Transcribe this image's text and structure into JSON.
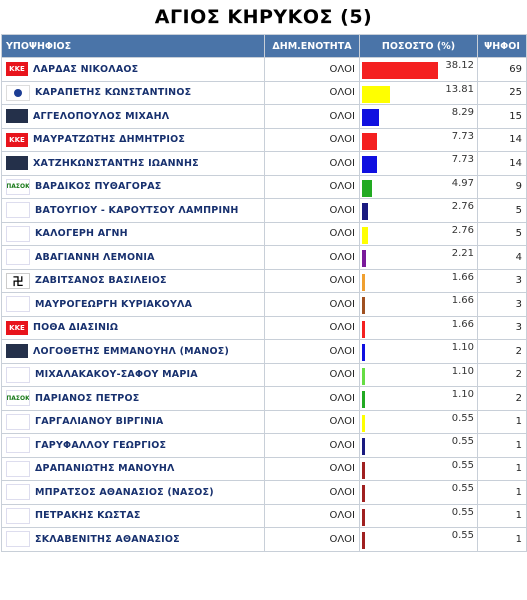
{
  "title": "ΑΓΙΟΣ ΚΗΡΥΚΟΣ (5)",
  "headers": {
    "candidate": "ΥΠΟΨΗΦΙΟΣ",
    "unit": "ΔΗΜ.ΕΝΟΤΗΤΑ",
    "percent": "ΠΟΣΟΣΤΟ (%)",
    "votes": "ΨΗΦΟΙ"
  },
  "colors": {
    "header_bg": "#4a74a8",
    "red": "#f02020",
    "yellow": "#ffff00",
    "blue": "#1010e0",
    "green": "#22aa22",
    "navy": "#1a1a80",
    "purple": "#7a1a9a",
    "orange": "#f0a030",
    "brown": "#a05020",
    "lightgreen": "#66dd44",
    "darkred": "#a02020"
  },
  "max_percent": 38.12,
  "rows": [
    {
      "logo": "kke",
      "logo_text": "KKE",
      "name": "ΛΑΡΔΑΣ ΝΙΚΟΛΑΟΣ",
      "unit": "ΟΛΟΙ",
      "percent": "38.12",
      "votes": "69",
      "bar_color": "#f42020"
    },
    {
      "logo": "nd",
      "logo_text": "",
      "name": "ΚΑΡΑΠΕΤΗΣ ΚΩΝΣΤΑΝΤΙΝΟΣ",
      "unit": "ΟΛΟΙ",
      "percent": "13.81",
      "votes": "25",
      "bar_color": "#ffff00"
    },
    {
      "logo": "syriza",
      "logo_text": "",
      "name": "ΑΓΓΕΛΟΠΟΥΛΟΣ ΜΙΧΑΗΛ",
      "unit": "ΟΛΟΙ",
      "percent": "8.29",
      "votes": "15",
      "bar_color": "#1010e0"
    },
    {
      "logo": "kke",
      "logo_text": "KKE",
      "name": "ΜΑΥΡΑΤΖΩΤΗΣ ΔΗΜΗΤΡΙΟΣ",
      "unit": "ΟΛΟΙ",
      "percent": "7.73",
      "votes": "14",
      "bar_color": "#f42020"
    },
    {
      "logo": "syriza",
      "logo_text": "",
      "name": "ΧΑΤΖΗΚΩΝΣΤΑΝΤΗΣ ΙΩΑΝΝΗΣ",
      "unit": "ΟΛΟΙ",
      "percent": "7.73",
      "votes": "14",
      "bar_color": "#1010e0"
    },
    {
      "logo": "pasok",
      "logo_text": "ΠΑΣΟΚ",
      "name": "ΒΑΡΔΙΚΟΣ ΠΥΘΑΓΟΡΑΣ",
      "unit": "ΟΛΟΙ",
      "percent": "4.97",
      "votes": "9",
      "bar_color": "#22aa22"
    },
    {
      "logo": "anel",
      "logo_text": "",
      "name": "ΒΑΤΟΥΓΙΟΥ - ΚΑΡΟΥΤΣΟΥ ΛΑΜΠΡΙΝΗ",
      "unit": "ΟΛΟΙ",
      "percent": "2.76",
      "votes": "5",
      "bar_color": "#1a1a80"
    },
    {
      "logo": "anel",
      "logo_text": "",
      "name": "ΚΑΛΟΓΕΡΗ ΑΓΝΗ",
      "unit": "ΟΛΟΙ",
      "percent": "2.76",
      "votes": "5",
      "bar_color": "#ffff00"
    },
    {
      "logo": "laos",
      "logo_text": "",
      "name": "ΑΒΑΓΙΑΝΝΗ ΛΕΜΟΝΙΑ",
      "unit": "ΟΛΟΙ",
      "percent": "2.21",
      "votes": "4",
      "bar_color": "#7a1a9a"
    },
    {
      "logo": "xa",
      "logo_text": "卍",
      "name": "ΖΑΒΙΤΣΑΝΟΣ ΒΑΣΙΛΕΙΟΣ",
      "unit": "ΟΛΟΙ",
      "percent": "1.66",
      "votes": "3",
      "bar_color": "#f0a030"
    },
    {
      "logo": "dimar",
      "logo_text": "",
      "name": "ΜΑΥΡΟΓΕΩΡΓΗ ΚΥΡΙΑΚΟΥΛΑ",
      "unit": "ΟΛΟΙ",
      "percent": "1.66",
      "votes": "3",
      "bar_color": "#a05020"
    },
    {
      "logo": "kke",
      "logo_text": "KKE",
      "name": "ΠΟΘΑ ΔΙΑΣΙΝΙΩ",
      "unit": "ΟΛΟΙ",
      "percent": "1.66",
      "votes": "3",
      "bar_color": "#f42020"
    },
    {
      "logo": "syriza",
      "logo_text": "",
      "name": "ΛΟΓΟΘΕΤΗΣ ΕΜΜΑΝΟΥΗΛ (ΜΑΝΟΣ)",
      "unit": "ΟΛΟΙ",
      "percent": "1.10",
      "votes": "2",
      "bar_color": "#1010e0"
    },
    {
      "logo": "potami",
      "logo_text": "",
      "name": "ΜΙΧΑΛΑΚΑΚΟΥ-ΣΑΦΟΥ ΜΑΡΙΑ",
      "unit": "ΟΛΟΙ",
      "percent": "1.10",
      "votes": "2",
      "bar_color": "#66dd44"
    },
    {
      "logo": "pasok",
      "logo_text": "ΠΑΣΟΚ",
      "name": "ΠΑΡΙΑΝΟΣ ΠΕΤΡΟΣ",
      "unit": "ΟΛΟΙ",
      "percent": "1.10",
      "votes": "2",
      "bar_color": "#22aa22"
    },
    {
      "logo": "potami",
      "logo_text": "",
      "name": "ΓΑΡΓΑΛΙΑΝΟΥ ΒΙΡΓΙΝΙΑ",
      "unit": "ΟΛΟΙ",
      "percent": "0.55",
      "votes": "1",
      "bar_color": "#ffff00"
    },
    {
      "logo": "anel",
      "logo_text": "",
      "name": "ΓΑΡΥΦΑΛΛΟΥ ΓΕΩΡΓΙΟΣ",
      "unit": "ΟΛΟΙ",
      "percent": "0.55",
      "votes": "1",
      "bar_color": "#1a1a80"
    },
    {
      "logo": "dimar",
      "logo_text": "",
      "name": "ΔΡΑΠΑΝΙΩΤΗΣ ΜΑΝΟΥΗΛ",
      "unit": "ΟΛΟΙ",
      "percent": "0.55",
      "votes": "1",
      "bar_color": "#a02020"
    },
    {
      "logo": "antarsya",
      "logo_text": "",
      "name": "ΜΠΡΑΤΣΟΣ ΑΘΑΝΑΣΙΟΣ (ΝΑΣΟΣ)",
      "unit": "ΟΛΟΙ",
      "percent": "0.55",
      "votes": "1",
      "bar_color": "#a02020"
    },
    {
      "logo": "antarsya",
      "logo_text": "",
      "name": "ΠΕΤΡΑΚΗΣ ΚΩΣΤΑΣ",
      "unit": "ΟΛΟΙ",
      "percent": "0.55",
      "votes": "1",
      "bar_color": "#a02020"
    },
    {
      "logo": "antarsya",
      "logo_text": "",
      "name": "ΣΚΛΑΒΕΝΙΤΗΣ ΑΘΑΝΑΣΙΟΣ",
      "unit": "ΟΛΟΙ",
      "percent": "0.55",
      "votes": "1",
      "bar_color": "#a02020"
    }
  ]
}
